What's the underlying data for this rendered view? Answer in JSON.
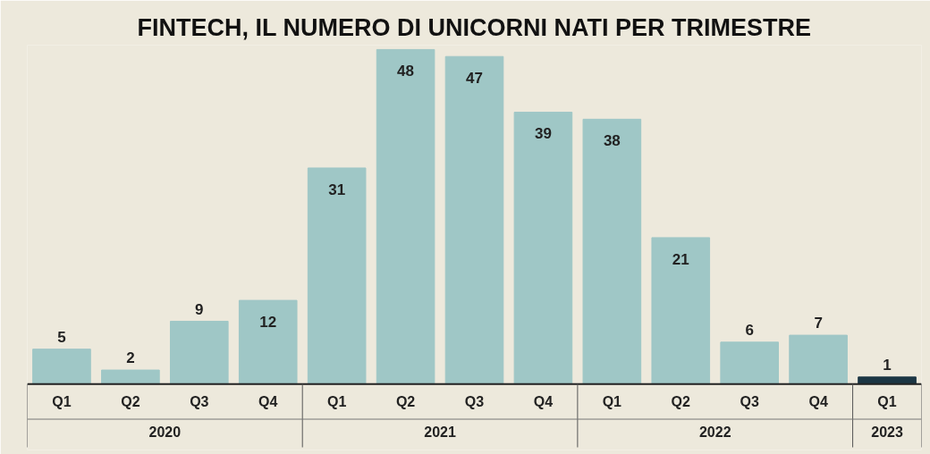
{
  "chart_data": {
    "type": "bar",
    "title": "FINTECH, IL NUMERO DI UNICORNI NATI PER TRIMESTRE",
    "categories": [
      "Q1",
      "Q2",
      "Q3",
      "Q4",
      "Q1",
      "Q2",
      "Q3",
      "Q4",
      "Q1",
      "Q2",
      "Q3",
      "Q4",
      "Q1"
    ],
    "values": [
      5,
      2,
      9,
      12,
      31,
      48,
      47,
      39,
      38,
      21,
      6,
      7,
      1
    ],
    "colors": [
      "#9fc7c6",
      "#9fc7c6",
      "#9fc7c6",
      "#9fc7c6",
      "#9fc7c6",
      "#9fc7c6",
      "#9fc7c6",
      "#9fc7c6",
      "#9fc7c6",
      "#9fc7c6",
      "#9fc7c6",
      "#9fc7c6",
      "#1c3644"
    ],
    "annotations": [
      "2020",
      "2021",
      "2022",
      "2023"
    ],
    "data_labels": true,
    "grid": false
  }
}
